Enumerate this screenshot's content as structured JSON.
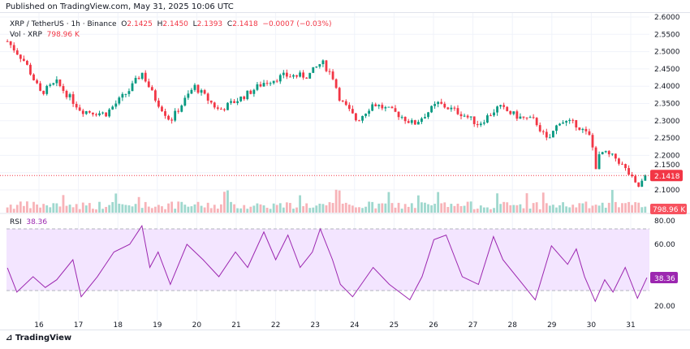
{
  "published": "Published on TradingView.com, May 31, 2025 10:06 UTC",
  "symbol": "XRP / TetherUS · 1h · Binance",
  "ohlc": {
    "o_label": "O",
    "o": "2.1425",
    "h_label": "H",
    "h": "2.1450",
    "l_label": "L",
    "l": "2.1393",
    "c_label": "C",
    "c": "2.1418",
    "change": "−0.0007 (−0.03%)"
  },
  "volume": {
    "label": "Vol · XRP",
    "value": "798.96 K"
  },
  "rsi": {
    "label": "RSI",
    "value": "38.36"
  },
  "logo": "TradingView",
  "colors": {
    "up": "#089981",
    "down": "#f23645",
    "rsi": "#9c27b0",
    "rsi_band": "#f3e5ff"
  },
  "chart_data": [
    {
      "type": "candlestick",
      "xlabel": "",
      "ylabel": "",
      "ylim": [
        2.08,
        2.6
      ],
      "y_ticks": [
        "2.6000",
        "2.5500",
        "2.5000",
        "2.4500",
        "2.4000",
        "2.3500",
        "2.3000",
        "2.2500",
        "2.2000",
        "2.1500",
        "2.1000"
      ],
      "x_ticks": [
        "16",
        "17",
        "18",
        "19",
        "20",
        "21",
        "22",
        "23",
        "24",
        "25",
        "26",
        "27",
        "28",
        "29",
        "30",
        "31"
      ],
      "last_price": "2.1418",
      "last_volume": "798.96 K",
      "close_path": {
        "day": [
          15.2,
          15.65,
          16.04,
          16.45,
          17.07,
          17.69,
          18.3,
          18.61,
          18.91,
          19.33,
          19.94,
          20.56,
          21.18,
          21.69,
          22.21,
          22.82,
          23.17,
          23.44,
          23.64,
          24.06,
          24.47,
          25.09,
          25.5,
          26.11,
          26.73,
          27.14,
          27.65,
          28.17,
          28.58,
          28.89,
          29.2,
          29.62,
          29.99,
          30.13,
          30.23,
          30.65,
          30.96,
          31.17,
          31.41
        ],
        "close": [
          2.53,
          2.47,
          2.38,
          2.41,
          2.33,
          2.32,
          2.39,
          2.44,
          2.37,
          2.3,
          2.4,
          2.33,
          2.37,
          2.41,
          2.43,
          2.43,
          2.47,
          2.43,
          2.36,
          2.3,
          2.35,
          2.32,
          2.29,
          2.35,
          2.32,
          2.29,
          2.34,
          2.31,
          2.3,
          2.24,
          2.3,
          2.29,
          2.25,
          2.16,
          2.21,
          2.19,
          2.145,
          2.105,
          2.142
        ]
      }
    },
    {
      "type": "line",
      "name": "RSI",
      "ylim": [
        15,
        80
      ],
      "y_ticks": [
        "80.00",
        "60.00",
        "20.00"
      ],
      "bands": [
        30,
        70
      ],
      "day": [
        15.2,
        15.44,
        15.85,
        16.16,
        16.45,
        16.86,
        17.07,
        17.48,
        17.9,
        18.3,
        18.61,
        18.81,
        19.02,
        19.33,
        19.75,
        20.16,
        20.56,
        20.98,
        21.29,
        21.7,
        22.0,
        22.31,
        22.62,
        22.93,
        23.13,
        23.44,
        23.64,
        23.95,
        24.47,
        24.88,
        25.4,
        25.71,
        26.01,
        26.32,
        26.73,
        27.14,
        27.52,
        27.76,
        28.17,
        28.58,
        28.99,
        29.4,
        29.62,
        29.83,
        30.1,
        30.34,
        30.55,
        30.86,
        31.17,
        31.41
      ],
      "values": [
        44.7,
        29,
        39,
        32,
        37,
        50,
        26,
        39,
        55,
        60,
        72,
        45,
        55,
        34,
        60,
        50,
        39,
        55,
        45,
        68,
        50,
        66,
        45,
        55,
        70,
        50,
        34,
        26,
        45,
        34,
        24,
        39,
        63,
        66,
        39,
        34,
        65,
        50,
        37,
        24,
        59,
        47,
        57,
        39,
        23,
        37,
        29,
        45,
        25,
        38.4
      ]
    }
  ]
}
